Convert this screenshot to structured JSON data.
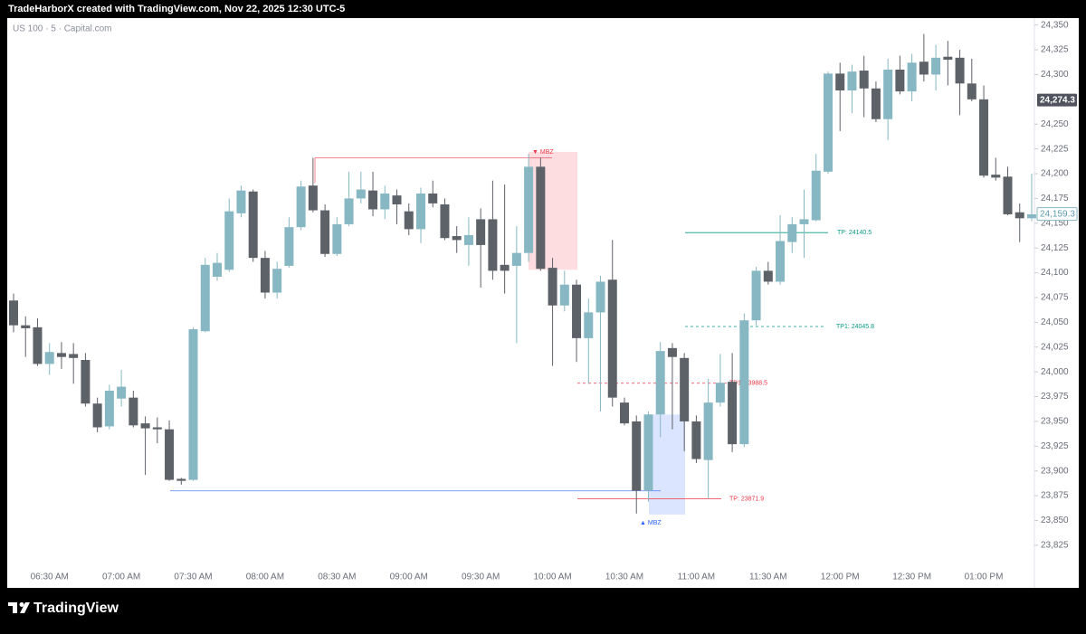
{
  "header": {
    "text": "TradeHarborX created with TradingView.com, Nov 22, 2025 12:30 UTC-5"
  },
  "footer": {
    "brand": "TradingView"
  },
  "chart_data": {
    "type": "candlestick",
    "title": "US 100 · 5 · Capital.com",
    "categories": [
      null,
      null,
      null,
      "06:30 AM",
      null,
      null,
      null,
      null,
      null,
      "07:00 AM",
      null,
      null,
      null,
      null,
      null,
      "07:30 AM",
      null,
      null,
      null,
      null,
      null,
      "08:00 AM",
      null,
      null,
      null,
      null,
      null,
      "08:30 AM",
      null,
      null,
      null,
      null,
      null,
      "09:00 AM",
      null,
      null,
      null,
      null,
      null,
      "09:30 AM",
      null,
      null,
      null,
      null,
      null,
      "10:00 AM",
      null,
      null,
      null,
      null,
      null,
      "10:30 AM",
      null,
      null,
      null,
      null,
      null,
      "11:00 AM",
      null,
      null,
      null,
      null,
      null,
      "11:30 AM",
      null,
      null,
      null,
      null,
      null,
      "12:00 PM",
      null,
      null,
      null,
      null,
      null,
      "12:30 PM",
      null,
      null,
      null,
      null,
      null,
      "01:00 PM",
      null,
      null,
      null,
      null
    ],
    "open": [
      24072,
      24047,
      24045,
      24008,
      24019,
      24018,
      24012,
      23968,
      23945,
      23973,
      23974,
      23948,
      23944,
      23942,
      23892,
      23891,
      24041,
      24096,
      24103,
      24160,
      24182,
      24115,
      24080,
      24107,
      24146,
      24188,
      24163,
      24119,
      24149,
      24175,
      24183,
      24164,
      24178,
      24162,
      24144,
      24180,
      24169,
      24137,
      24128,
      24154,
      24154,
      24108,
      24107,
      24120,
      24207,
      24105,
      24067,
      24088,
      24034,
      24060,
      24093,
      23969,
      23950,
      23880,
      23957,
      24024,
      24014,
      23950,
      23911,
      23969,
      23990,
      23927,
      24052,
      24102,
      24091,
      24131,
      24149,
      24153,
      24202,
      24301,
      24284,
      24304,
      24286,
      24255,
      24305,
      24283,
      24313,
      24300,
      24318,
      24317,
      24291,
      24275,
      24199,
      24197,
      24161,
      24155
    ],
    "high": [
      24079,
      24056,
      24054,
      24029,
      24030,
      24029,
      24019,
      23974,
      23987,
      24002,
      23981,
      23955,
      23954,
      23951,
      23893,
      24045,
      24115,
      24120,
      24175,
      24188,
      24184,
      24122,
      24111,
      24156,
      24193,
      24216,
      24169,
      24156,
      24202,
      24202,
      24202,
      24188,
      24184,
      24170,
      24186,
      24193,
      24175,
      24147,
      24156,
      24165,
      24193,
      24189,
      24147,
      24220,
      24216,
      24115,
      24102,
      24093,
      24074,
      24097,
      24133,
      23974,
      23956,
      23960,
      24030,
      24029,
      24019,
      23956,
      23993,
      24018,
      24019,
      24059,
      24106,
      24111,
      24158,
      24156,
      24184,
      24220,
      24303,
      24312,
      24310,
      24319,
      24293,
      24316,
      24319,
      24321,
      24341,
      24330,
      24334,
      24325,
      24316,
      24289,
      24216,
      24207,
      24170,
      24200
    ],
    "low": [
      24040,
      24015,
      24006,
      23997,
      24003,
      23988,
      23965,
      23939,
      23942,
      23965,
      23944,
      23896,
      23928,
      23890,
      23886,
      23890,
      24040,
      24092,
      24101,
      24156,
      24111,
      24074,
      24074,
      24105,
      24143,
      24161,
      24116,
      24117,
      24147,
      24170,
      24157,
      24154,
      24149,
      24138,
      24130,
      24166,
      24133,
      24120,
      24107,
      24085,
      24093,
      24079,
      24029,
      24111,
      24102,
      24006,
      24061,
      24010,
      23988,
      23960,
      23965,
      23946,
      23857,
      23869,
      23934,
      23942,
      23920,
      23908,
      23872,
      23965,
      23919,
      23924,
      24047,
      24088,
      24088,
      24120,
      24115,
      24152,
      24200,
      24243,
      24261,
      24257,
      24252,
      24234,
      24280,
      24273,
      24293,
      24284,
      24289,
      24259,
      24273,
      24196,
      24193,
      24158,
      24131,
      24152
    ],
    "close": [
      24047,
      24044,
      24008,
      24020,
      24015,
      24014,
      23968,
      23944,
      23981,
      23985,
      23946,
      23943,
      23942,
      23891,
      23890,
      24043,
      24108,
      24110,
      24162,
      24183,
      24115,
      24080,
      24104,
      24146,
      24187,
      24163,
      24119,
      24149,
      24175,
      24184,
      24164,
      24180,
      24169,
      24144,
      24180,
      24170,
      24135,
      24133,
      24138,
      24128,
      24102,
      24102,
      24120,
      24207,
      24104,
      24067,
      24088,
      24034,
      24060,
      24091,
      23974,
      23948,
      23880,
      23957,
      24021,
      24015,
      23950,
      23912,
      23969,
      23989,
      23927,
      24052,
      24102,
      24091,
      24132,
      24149,
      24154,
      24203,
      24301,
      24284,
      24303,
      24286,
      24255,
      24305,
      24283,
      24312,
      24300,
      24317,
      24315,
      24291,
      24275,
      24198,
      24196,
      24159,
      24155,
      24159
    ],
    "up_color": "#86b7c3",
    "down_color": "#5d6168",
    "ylim": [
      23782,
      24357
    ],
    "yticks": [
      {
        "value": 23825,
        "label": "23,825"
      },
      {
        "value": 23850,
        "label": "23,850"
      },
      {
        "value": 23875,
        "label": "23,875"
      },
      {
        "value": 23900,
        "label": "23,900"
      },
      {
        "value": 23925,
        "label": "23,925"
      },
      {
        "value": 23950,
        "label": "23,950"
      },
      {
        "value": 23975,
        "label": "23,975"
      },
      {
        "value": 24000,
        "label": "24,000"
      },
      {
        "value": 24025,
        "label": "24,025"
      },
      {
        "value": 24050,
        "label": "24,050"
      },
      {
        "value": 24075,
        "label": "24,075"
      },
      {
        "value": 24100,
        "label": "24,100"
      },
      {
        "value": 24125,
        "label": "24,125"
      },
      {
        "value": 24150,
        "label": "24,150"
      },
      {
        "value": 24175,
        "label": "24,175"
      },
      {
        "value": 24200,
        "label": "24,200"
      },
      {
        "value": 24225,
        "label": "24,225"
      },
      {
        "value": 24250,
        "label": "24,250"
      },
      {
        "value": 24300,
        "label": "24,300"
      },
      {
        "value": 24325,
        "label": "24,325"
      },
      {
        "value": 24350,
        "label": "24,350"
      }
    ],
    "grid": false,
    "price_labels": [
      {
        "value": 24274.3,
        "label": "24,274.3",
        "style": "dark"
      },
      {
        "value": 24159.3,
        "label": "24,159.3",
        "style": "outline"
      }
    ],
    "levels": [
      {
        "value": 24140.5,
        "label": "TP: 24140.5",
        "color": "#089981",
        "dash": false
      },
      {
        "value": 24045.8,
        "label": "TP1: 24045.8",
        "color": "#089981",
        "dash": true
      },
      {
        "value": 23988.5,
        "label": "TP1: 23988.5",
        "color": "#f23645",
        "dash": true
      },
      {
        "value": 23871.9,
        "label": "TP: 23871.9",
        "color": "#f23645",
        "dash": false
      }
    ],
    "zones": [
      {
        "label": "▼ MBZ",
        "top": 24222,
        "bottom": 24103,
        "level": 24216,
        "color": "#f23645"
      },
      {
        "label": "▲ MBZ",
        "top": 23957,
        "bottom": 23856,
        "level": 23880,
        "color": "#2962ff"
      }
    ]
  }
}
